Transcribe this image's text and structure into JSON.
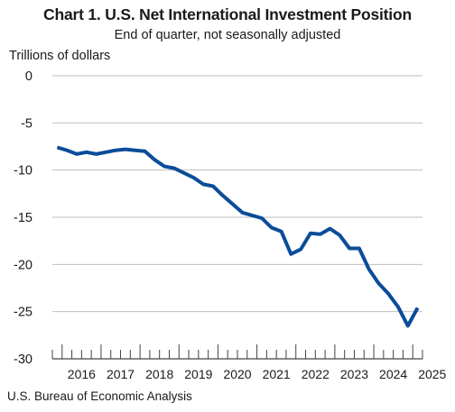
{
  "chart_data": {
    "type": "line",
    "title": "Chart 1. U.S. Net International Investment Position",
    "subtitle": "End of quarter, not seasonally adjusted",
    "ylabel": "Trillions of dollars",
    "xlabel": "",
    "ylim": [
      -30,
      0
    ],
    "yticks": [
      0,
      -5,
      -10,
      -15,
      -20,
      -25,
      -30
    ],
    "xticks": [
      "2016",
      "2017",
      "2018",
      "2019",
      "2020",
      "2021",
      "2022",
      "2023",
      "2024",
      "2025"
    ],
    "grid": true,
    "line_color": "#0b4c9a",
    "grid_color": "#bfbfbf",
    "x": [
      "2015Q4",
      "2016Q1",
      "2016Q2",
      "2016Q3",
      "2016Q4",
      "2017Q1",
      "2017Q2",
      "2017Q3",
      "2017Q4",
      "2018Q1",
      "2018Q2",
      "2018Q3",
      "2018Q4",
      "2019Q1",
      "2019Q2",
      "2019Q3",
      "2019Q4",
      "2020Q1",
      "2020Q2",
      "2020Q3",
      "2020Q4",
      "2021Q1",
      "2021Q2",
      "2021Q3",
      "2021Q4",
      "2022Q1",
      "2022Q2",
      "2022Q3",
      "2022Q4",
      "2023Q1",
      "2023Q2",
      "2023Q3",
      "2023Q4",
      "2024Q1",
      "2024Q2",
      "2024Q3",
      "2024Q4",
      "2025Q1"
    ],
    "values": [
      -7.6,
      -7.9,
      -8.3,
      -8.1,
      -8.3,
      -8.1,
      -7.9,
      -7.8,
      -7.9,
      -8.0,
      -8.9,
      -9.6,
      -9.8,
      -10.3,
      -10.8,
      -11.5,
      -11.7,
      -12.7,
      -13.6,
      -14.5,
      -14.8,
      -15.1,
      -16.1,
      -16.5,
      -18.9,
      -18.4,
      -16.7,
      -16.8,
      -16.2,
      -16.9,
      -18.3,
      -18.3,
      -20.5,
      -22.0,
      -23.1,
      -24.5,
      -26.5,
      -24.6
    ]
  },
  "footer": {
    "source": "U.S. Bureau of Economic Analysis"
  }
}
